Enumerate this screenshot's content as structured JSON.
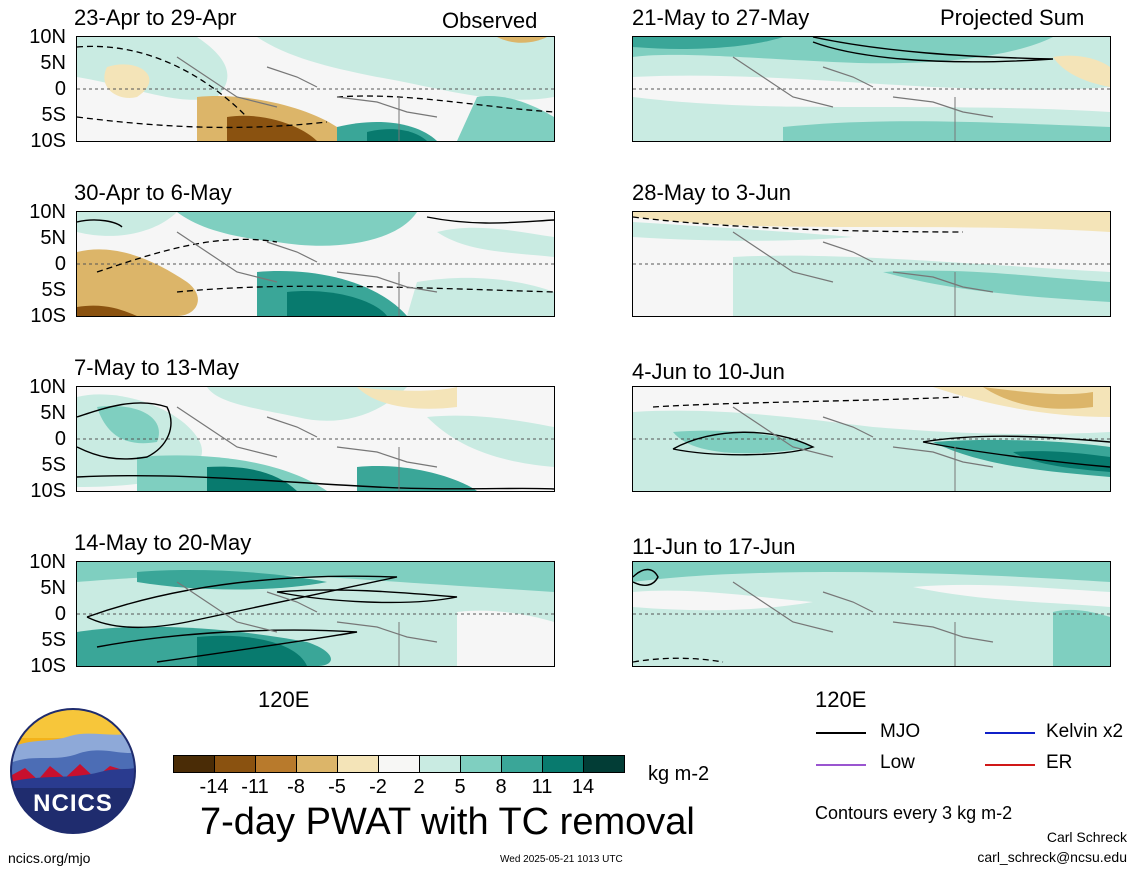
{
  "panels_left": [
    {
      "title": "23-Apr to 29-Apr",
      "tag": "Observed"
    },
    {
      "title": "30-Apr to 6-May",
      "tag": ""
    },
    {
      "title": "7-May to 13-May",
      "tag": ""
    },
    {
      "title": "14-May to 20-May",
      "tag": ""
    }
  ],
  "panels_right": [
    {
      "title": "21-May to 27-May",
      "tag": "Projected Sum"
    },
    {
      "title": "28-May to 3-Jun",
      "tag": ""
    },
    {
      "title": "4-Jun to 10-Jun",
      "tag": ""
    },
    {
      "title": "11-Jun to 17-Jun",
      "tag": ""
    }
  ],
  "lat_labels": [
    "10N",
    "5N",
    "0",
    "5S",
    "10S"
  ],
  "lon_label": "120E",
  "colorbar": {
    "ticks": [
      "-14",
      "-11",
      "-8",
      "-5",
      "-2",
      "2",
      "5",
      "8",
      "11",
      "14"
    ],
    "unit": "kg m-2",
    "colors": [
      "#4a2c06",
      "#8a5210",
      "#b87a2c",
      "#dcb569",
      "#f4e4b8",
      "#f7f7f5",
      "#c9ebe2",
      "#7fcfc0",
      "#3aa698",
      "#087a6e",
      "#023d36"
    ]
  },
  "main_title": "7-day PWAT with TC removal",
  "line_legend": [
    {
      "label": "MJO",
      "color": "#000000"
    },
    {
      "label": "Kelvin x2",
      "color": "#1020c8"
    },
    {
      "label": "Low",
      "color": "#9a55d0"
    },
    {
      "label": "ER",
      "color": "#d01818"
    }
  ],
  "contour_note": "Contours every 3 kg m-2",
  "author": "Carl Schreck",
  "email": "carl_schreck@ncsu.edu",
  "url": "ncics.org/mjo",
  "timestamp": "Wed 2025-05-21 1013 UTC",
  "logo_text": "NCICS"
}
